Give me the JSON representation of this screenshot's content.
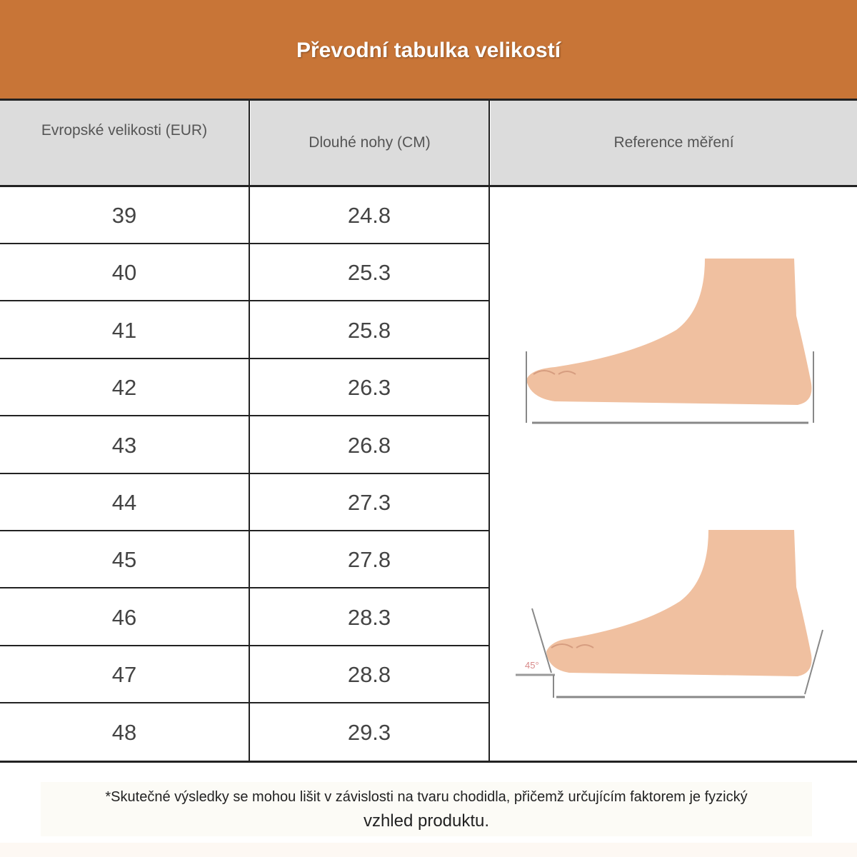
{
  "title": "Převodní tabulka velikostí",
  "columns": [
    "Evropské velikosti (EUR)",
    "Dlouhé nohy (CM)",
    "Reference měření"
  ],
  "rows": [
    {
      "eur": "39",
      "cm": "24.8"
    },
    {
      "eur": "40",
      "cm": "25.3"
    },
    {
      "eur": "41",
      "cm": "25.8"
    },
    {
      "eur": "42",
      "cm": "26.3"
    },
    {
      "eur": "43",
      "cm": "26.8"
    },
    {
      "eur": "44",
      "cm": "27.3"
    },
    {
      "eur": "45",
      "cm": "27.8"
    },
    {
      "eur": "46",
      "cm": "28.3"
    },
    {
      "eur": "47",
      "cm": "28.8"
    },
    {
      "eur": "48",
      "cm": "29.3"
    }
  ],
  "illustration": {
    "angle_label": "45°"
  },
  "footnote": {
    "line1": "*Skutečné výsledky se mohou lišit v závislosti na tvaru chodidla, přičemž určujícím faktorem je fyzický",
    "line2": "vzhled produktu."
  },
  "colors": {
    "banner": "#c87537",
    "header_bg": "#dcdcdc",
    "skin": "#f0c0a0"
  }
}
